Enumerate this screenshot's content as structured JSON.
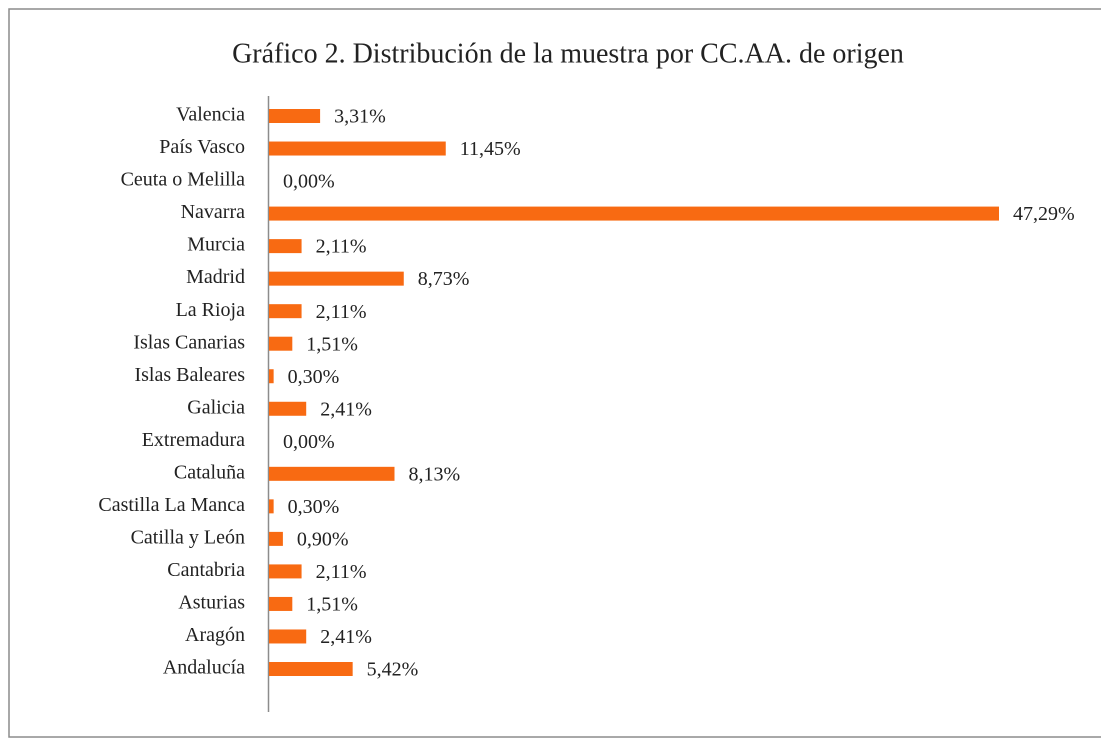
{
  "chart_data": {
    "type": "barh",
    "title": "Gráfico 2. Distribución de la muestra por CC.AA. de origen",
    "categories": [
      "Valencia",
      "País Vasco",
      "Ceuta o Melilla",
      "Navarra",
      "Murcia",
      "Madrid",
      "La Rioja",
      "Islas Canarias",
      "Islas Baleares",
      "Galicia",
      "Extremadura",
      "Cataluña",
      "Castilla La Manca",
      "Catilla y León",
      "Cantabria",
      "Asturias",
      "Aragón",
      "Andalucía"
    ],
    "values": [
      3.31,
      11.45,
      0,
      47.29,
      2.11,
      8.73,
      2.11,
      1.51,
      0.3,
      2.41,
      0,
      8.13,
      0.3,
      0.9,
      2.11,
      1.51,
      2.41,
      5.42
    ],
    "value_labels": [
      "3,31%",
      "11,45%",
      "0,00%",
      "47,29%",
      "2,11%",
      "8,73%",
      "2,11%",
      "1,51%",
      "0,30%",
      "2,41%",
      "0,00%",
      "8,13%",
      "0,30%",
      "0,90%",
      "2,11%",
      "1,51%",
      "2,41%",
      "5,42%"
    ],
    "color": "#f86a12"
  }
}
